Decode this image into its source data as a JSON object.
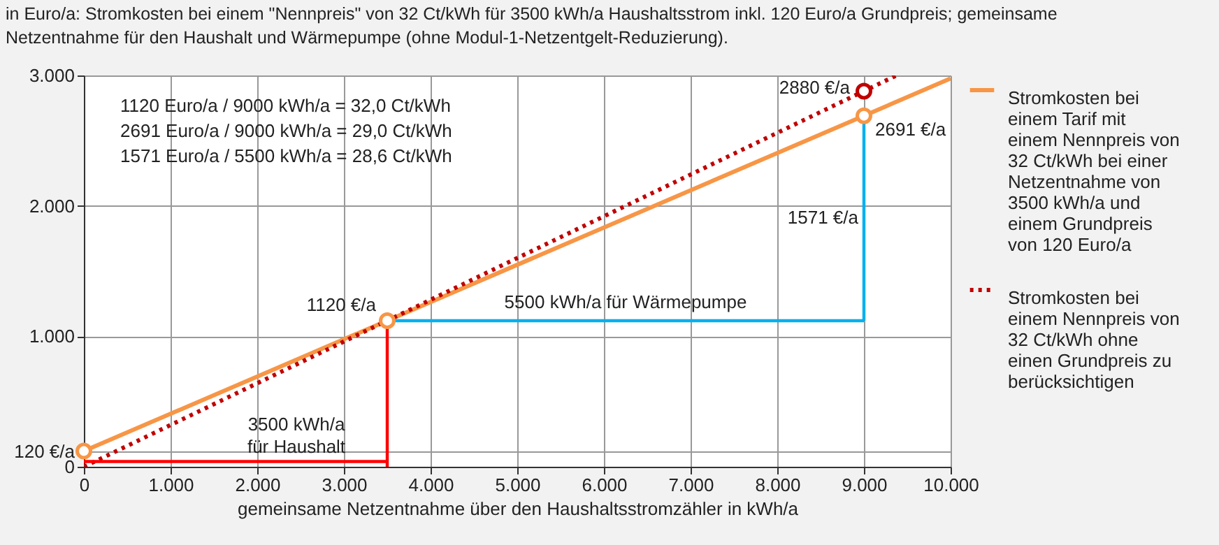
{
  "chart_data": {
    "type": "line",
    "title": "in Euro/a: Stromkosten bei einem \"Nennpreis\" von 32 Ct/kWh für 3500 kWh/a Haushaltsstrom inkl. 120 Euro/a Grundpreis; gemeinsame Netzentnahme für den Haushalt und Wärmepumpe (ohne Modul-1-Netzentgelt-Reduzierung).",
    "xlabel": "gemeinsame Netzentnahme über den Haushaltsstromzähler  in kWh/a",
    "xlim": [
      0,
      10000
    ],
    "xticks": [
      0,
      {
        "value": 1000,
        "label": "1.000"
      },
      {
        "value": 2000,
        "label": "2.000"
      },
      {
        "value": 3000,
        "label": "3.000"
      },
      {
        "value": 4000,
        "label": "4.000"
      },
      {
        "value": 5000,
        "label": "5.000"
      },
      {
        "value": 6000,
        "label": "6.000"
      },
      {
        "value": 7000,
        "label": "7.000"
      },
      {
        "value": 8000,
        "label": "8.000"
      },
      {
        "value": 9000,
        "label": "9.000"
      },
      {
        "value": 10000,
        "label": "10.000"
      }
    ],
    "ylim": [
      0,
      3000
    ],
    "yticks": [
      0,
      {
        "value": 120,
        "label": "120 €/a"
      },
      {
        "value": 1000,
        "label": "1.000"
      },
      {
        "value": 2000,
        "label": "2.000"
      },
      {
        "value": 3000,
        "label": "3.000"
      }
    ],
    "grid": true,
    "legend": "right",
    "series": [
      {
        "name": "Stromkosten bei einem Tarif mit einem Nennpreis von 32 Ct/kWh bei einer Netzentnahme von 3500 kWh/a und einem Grundpreis von 120 Euro/a",
        "color": "#f79646",
        "line_style": "solid",
        "x": [
          0,
          3500,
          9000,
          10000
        ],
        "values": [
          120,
          1120,
          2691,
          2977
        ]
      },
      {
        "name": "Stromkosten bei einem Nennpreis von 32 Ct/kWh ohne einen Grundpreis zu berücksichtigen",
        "color": "#c00000",
        "line_style": "dotted",
        "x": [
          0,
          3500,
          9000,
          9375
        ],
        "values": [
          0,
          1120,
          2880,
          3000
        ]
      },
      {
        "color": "#ff0000",
        "line_style": "solid",
        "x": [
          0,
          3500
        ],
        "values": [
          40,
          40
        ]
      },
      {
        "color": "#ff0000",
        "line_style": "solid",
        "x": [
          3500,
          3500
        ],
        "values": [
          0,
          1120
        ]
      },
      {
        "color": "#00b0f0",
        "line_style": "solid",
        "x": [
          3500,
          9000
        ],
        "values": [
          1120,
          1120
        ]
      },
      {
        "color": "#00b0f0",
        "line_style": "solid",
        "x": [
          9000,
          9000
        ],
        "values": [
          1120,
          2691
        ]
      },
      {
        "type": "scatter",
        "color": "#f79646",
        "marker": "circle",
        "x": [
          0,
          3500,
          9000
        ],
        "values": [
          120,
          1120,
          2691
        ]
      },
      {
        "type": "scatter",
        "color": "#c00000",
        "marker": "circle",
        "x": [
          9000
        ],
        "values": [
          2880
        ]
      }
    ],
    "annotations": [
      "1120 Euro/a  /  9000 kWh/a = 32,0 Ct/kWh",
      "2691 Euro/a  /  9000 kWh/a = 29,0 Ct/kWh",
      "1571 Euro/a  /  5500 kWh/a = 28,6 Ct/kWh",
      "3500 kWh/a",
      "für Haushalt",
      {
        "text": "1120 €/a",
        "x": 3500,
        "y": 1120
      },
      {
        "text": "2880 €/a",
        "x": 9000,
        "y": 2880
      },
      {
        "text": "2691 €/a",
        "x": 9000,
        "y": 2691
      },
      {
        "text": "1571 €/a",
        "x": 9000,
        "y": 1905
      },
      {
        "text": "5500 kWh/a für Wärmepumpe",
        "x": 6250,
        "y": 1120
      }
    ]
  }
}
